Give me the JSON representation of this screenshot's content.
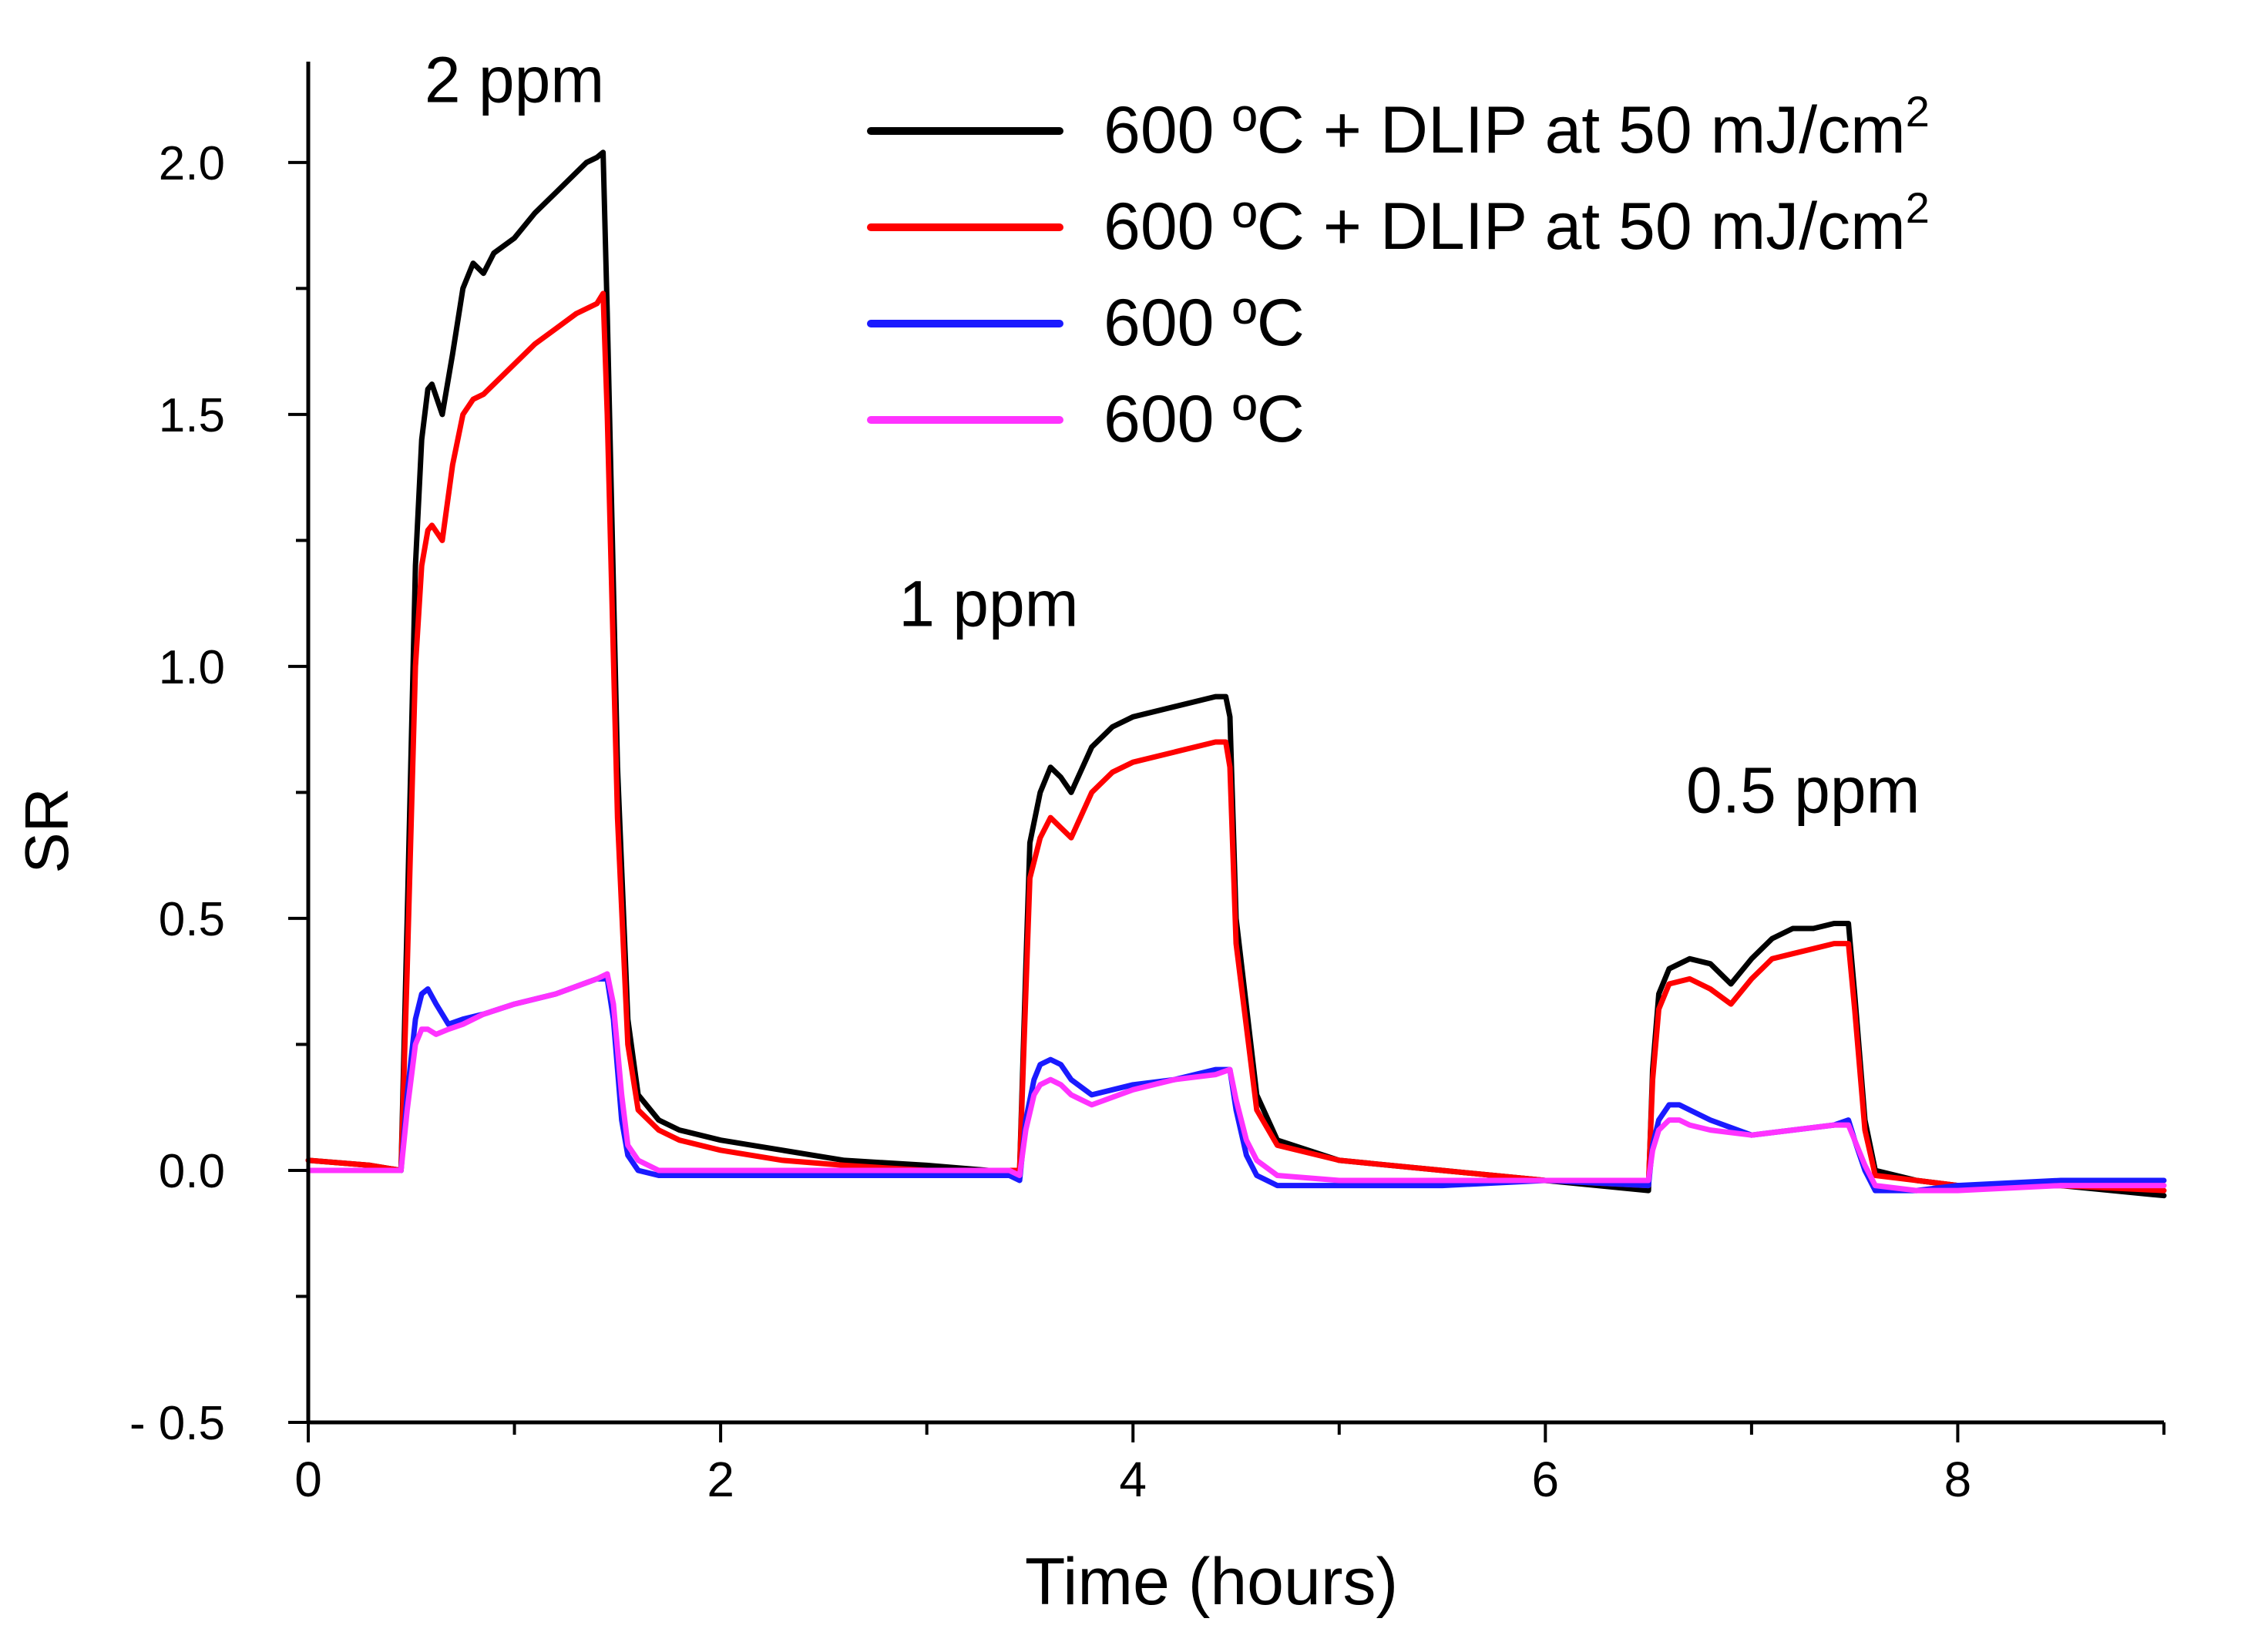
{
  "chart_data": {
    "type": "line",
    "title": "",
    "xlabel": "Time (hours)",
    "ylabel": "SR",
    "xlim": [
      0,
      9
    ],
    "ylim": [
      -0.5,
      2.2
    ],
    "x_ticks": [
      {
        "value": 0,
        "label": "0"
      },
      {
        "value": 2,
        "label": "2"
      },
      {
        "value": 4,
        "label": "4"
      },
      {
        "value": 6,
        "label": "6"
      },
      {
        "value": 8,
        "label": "8"
      }
    ],
    "x_minor_ticks": [
      1,
      3,
      5,
      7,
      9
    ],
    "y_ticks": [
      {
        "value": -0.5,
        "label": "- 0.5"
      },
      {
        "value": 0.0,
        "label": "0.0"
      },
      {
        "value": 0.5,
        "label": "0.5"
      },
      {
        "value": 1.0,
        "label": "1.0"
      },
      {
        "value": 1.5,
        "label": "1.5"
      },
      {
        "value": 2.0,
        "label": "2.0"
      }
    ],
    "y_minor_ticks": [
      -0.25,
      0.25,
      0.75,
      1.25,
      1.75
    ],
    "grid": false,
    "legend_position": "top-right",
    "annotations": [
      {
        "text": "2 ppm",
        "x": 1.0,
        "y": 2.12
      },
      {
        "text": "1 ppm",
        "x": 3.3,
        "y": 1.08
      },
      {
        "text": "0.5 ppm",
        "x": 7.25,
        "y": 0.71
      }
    ],
    "series": [
      {
        "name": "600 ºC + DLIP at 50 mJ/cm",
        "superscript": "2",
        "color": "#000000",
        "x": [
          0,
          0.3,
          0.45,
          0.48,
          0.52,
          0.55,
          0.58,
          0.6,
          0.65,
          0.7,
          0.75,
          0.8,
          0.85,
          0.9,
          1.0,
          1.1,
          1.2,
          1.3,
          1.35,
          1.4,
          1.43,
          1.45,
          1.5,
          1.55,
          1.6,
          1.7,
          1.8,
          2.0,
          2.3,
          2.6,
          3.0,
          3.3,
          3.45,
          3.48,
          3.5,
          3.55,
          3.6,
          3.65,
          3.7,
          3.8,
          3.9,
          4.0,
          4.2,
          4.4,
          4.45,
          4.47,
          4.5,
          4.6,
          4.7,
          5.0,
          5.5,
          6.0,
          6.5,
          6.52,
          6.55,
          6.6,
          6.7,
          6.8,
          6.9,
          7.0,
          7.1,
          7.2,
          7.3,
          7.4,
          7.47,
          7.5,
          7.55,
          7.6,
          7.8,
          8.0,
          8.5,
          9.0
        ],
        "y": [
          0.02,
          0.01,
          0.0,
          0.5,
          1.2,
          1.45,
          1.55,
          1.56,
          1.5,
          1.62,
          1.75,
          1.8,
          1.78,
          1.82,
          1.85,
          1.9,
          1.94,
          1.98,
          2.0,
          2.01,
          2.02,
          1.7,
          0.8,
          0.3,
          0.15,
          0.1,
          0.08,
          0.06,
          0.04,
          0.02,
          0.01,
          0.0,
          0.0,
          0.4,
          0.65,
          0.75,
          0.8,
          0.78,
          0.75,
          0.84,
          0.88,
          0.9,
          0.92,
          0.94,
          0.94,
          0.9,
          0.5,
          0.15,
          0.06,
          0.02,
          0.0,
          -0.02,
          -0.04,
          0.2,
          0.35,
          0.4,
          0.42,
          0.41,
          0.37,
          0.42,
          0.46,
          0.48,
          0.48,
          0.49,
          0.49,
          0.35,
          0.1,
          0.0,
          -0.02,
          -0.03,
          -0.03,
          -0.05
        ]
      },
      {
        "name": "600 ºC + DLIP at 50 mJ/cm",
        "superscript": "2",
        "color": "#ff0000",
        "x": [
          0,
          0.3,
          0.45,
          0.48,
          0.52,
          0.55,
          0.58,
          0.6,
          0.65,
          0.7,
          0.75,
          0.8,
          0.85,
          0.9,
          1.0,
          1.1,
          1.2,
          1.3,
          1.35,
          1.4,
          1.43,
          1.45,
          1.5,
          1.55,
          1.6,
          1.7,
          1.8,
          2.0,
          2.3,
          2.6,
          3.0,
          3.3,
          3.45,
          3.48,
          3.5,
          3.55,
          3.6,
          3.65,
          3.7,
          3.8,
          3.9,
          4.0,
          4.2,
          4.4,
          4.45,
          4.47,
          4.5,
          4.6,
          4.7,
          5.0,
          5.5,
          6.0,
          6.5,
          6.52,
          6.55,
          6.6,
          6.7,
          6.8,
          6.9,
          7.0,
          7.1,
          7.2,
          7.3,
          7.4,
          7.47,
          7.5,
          7.55,
          7.6,
          7.8,
          8.0,
          8.5,
          9.0
        ],
        "y": [
          0.02,
          0.01,
          0.0,
          0.4,
          1.0,
          1.2,
          1.27,
          1.28,
          1.25,
          1.4,
          1.5,
          1.53,
          1.54,
          1.56,
          1.6,
          1.64,
          1.67,
          1.7,
          1.71,
          1.72,
          1.74,
          1.5,
          0.7,
          0.25,
          0.12,
          0.08,
          0.06,
          0.04,
          0.02,
          0.01,
          0.0,
          0.0,
          0.0,
          0.35,
          0.58,
          0.66,
          0.7,
          0.68,
          0.66,
          0.75,
          0.79,
          0.81,
          0.83,
          0.85,
          0.85,
          0.8,
          0.45,
          0.12,
          0.05,
          0.02,
          0.0,
          -0.02,
          -0.03,
          0.18,
          0.32,
          0.37,
          0.38,
          0.36,
          0.33,
          0.38,
          0.42,
          0.43,
          0.44,
          0.45,
          0.45,
          0.32,
          0.08,
          -0.01,
          -0.02,
          -0.03,
          -0.03,
          -0.04
        ]
      },
      {
        "name": "600 ºC",
        "color": "#1a1aff",
        "x": [
          0,
          0.3,
          0.45,
          0.48,
          0.52,
          0.55,
          0.58,
          0.62,
          0.68,
          0.75,
          0.85,
          1.0,
          1.2,
          1.4,
          1.45,
          1.48,
          1.52,
          1.55,
          1.6,
          1.7,
          2.0,
          2.5,
          3.0,
          3.4,
          3.45,
          3.48,
          3.52,
          3.55,
          3.6,
          3.65,
          3.7,
          3.8,
          4.0,
          4.2,
          4.4,
          4.47,
          4.5,
          4.55,
          4.6,
          4.7,
          5.0,
          5.5,
          6.0,
          6.5,
          6.52,
          6.55,
          6.6,
          6.65,
          6.7,
          6.8,
          7.0,
          7.2,
          7.4,
          7.47,
          7.5,
          7.55,
          7.6,
          7.8,
          8.0,
          8.5,
          9.0
        ],
        "y": [
          0.0,
          0.0,
          0.0,
          0.15,
          0.3,
          0.35,
          0.36,
          0.33,
          0.29,
          0.3,
          0.31,
          0.33,
          0.35,
          0.38,
          0.38,
          0.3,
          0.1,
          0.03,
          0.0,
          -0.01,
          -0.01,
          -0.01,
          -0.01,
          -0.01,
          -0.02,
          0.1,
          0.18,
          0.21,
          0.22,
          0.21,
          0.18,
          0.15,
          0.17,
          0.18,
          0.2,
          0.2,
          0.12,
          0.03,
          -0.01,
          -0.03,
          -0.03,
          -0.03,
          -0.02,
          -0.03,
          0.05,
          0.1,
          0.13,
          0.13,
          0.12,
          0.1,
          0.07,
          0.08,
          0.09,
          0.1,
          0.06,
          0.0,
          -0.04,
          -0.04,
          -0.03,
          -0.02,
          -0.02
        ]
      },
      {
        "name": "600 ºC",
        "color": "#ff33ff",
        "x": [
          0,
          0.3,
          0.45,
          0.48,
          0.52,
          0.55,
          0.58,
          0.62,
          0.68,
          0.75,
          0.85,
          1.0,
          1.2,
          1.4,
          1.45,
          1.48,
          1.52,
          1.55,
          1.6,
          1.7,
          2.0,
          2.5,
          3.0,
          3.4,
          3.45,
          3.48,
          3.52,
          3.55,
          3.6,
          3.65,
          3.7,
          3.8,
          4.0,
          4.2,
          4.4,
          4.47,
          4.5,
          4.55,
          4.6,
          4.7,
          5.0,
          5.5,
          6.0,
          6.5,
          6.52,
          6.55,
          6.6,
          6.65,
          6.7,
          6.8,
          7.0,
          7.2,
          7.4,
          7.47,
          7.5,
          7.55,
          7.6,
          7.8,
          8.0,
          8.5,
          9.0
        ],
        "y": [
          0.0,
          0.0,
          0.0,
          0.12,
          0.25,
          0.28,
          0.28,
          0.27,
          0.28,
          0.29,
          0.31,
          0.33,
          0.35,
          0.38,
          0.39,
          0.33,
          0.15,
          0.05,
          0.02,
          0.0,
          0.0,
          0.0,
          0.0,
          0.0,
          -0.01,
          0.08,
          0.15,
          0.17,
          0.18,
          0.17,
          0.15,
          0.13,
          0.16,
          0.18,
          0.19,
          0.2,
          0.14,
          0.06,
          0.02,
          -0.01,
          -0.02,
          -0.02,
          -0.02,
          -0.02,
          0.04,
          0.08,
          0.1,
          0.1,
          0.09,
          0.08,
          0.07,
          0.08,
          0.09,
          0.09,
          0.06,
          0.01,
          -0.03,
          -0.04,
          -0.04,
          -0.03,
          -0.03
        ]
      }
    ]
  }
}
